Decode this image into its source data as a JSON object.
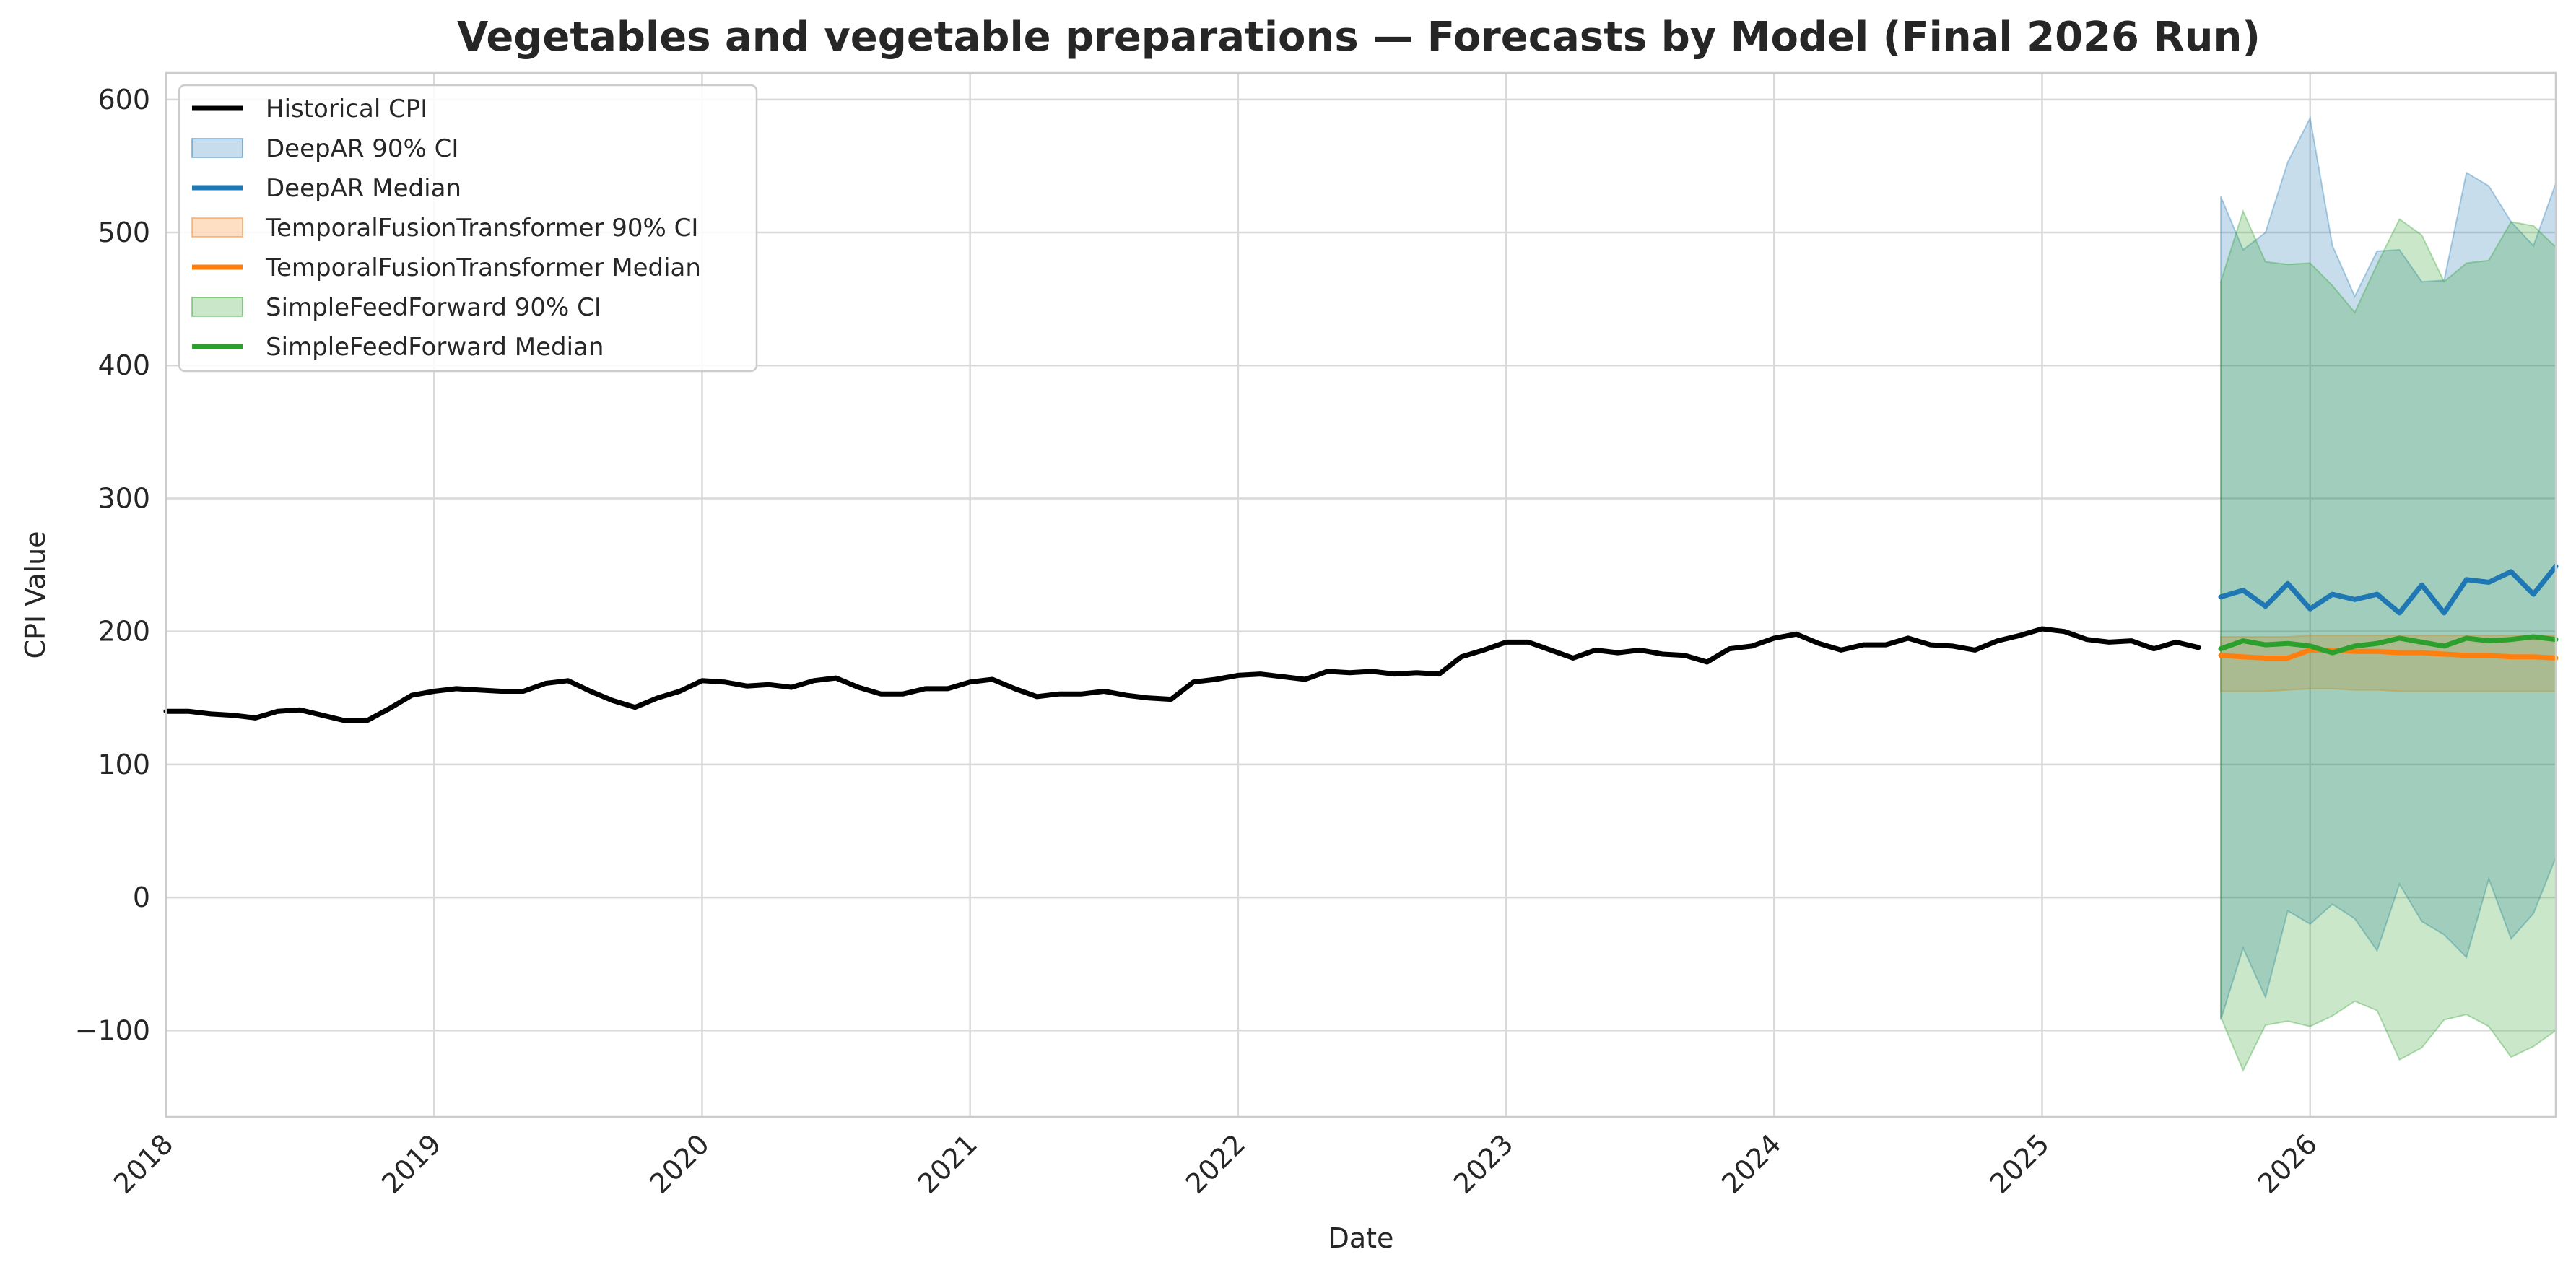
{
  "chart_data": {
    "type": "line",
    "title": "Vegetables and vegetable preparations — Forecasts by Model (Final 2026 Run)",
    "xlabel": "Date",
    "ylabel": "CPI Value",
    "xlim": [
      "2018-01",
      "2026-12"
    ],
    "ylim": [
      -165,
      620
    ],
    "x_ticks": [
      "2018",
      "2019",
      "2020",
      "2021",
      "2022",
      "2023",
      "2024",
      "2025",
      "2026"
    ],
    "y_ticks": [
      -100,
      0,
      100,
      200,
      300,
      400,
      500,
      600
    ],
    "grid": true,
    "legend_position": "top-left",
    "historical": {
      "name": "Historical CPI",
      "color": "#000000",
      "start": "2018-01",
      "values": [
        140,
        140,
        138,
        137,
        135,
        140,
        141,
        137,
        133,
        133,
        142,
        152,
        155,
        157,
        156,
        155,
        155,
        161,
        163,
        155,
        148,
        143,
        150,
        155,
        163,
        162,
        159,
        160,
        158,
        163,
        165,
        158,
        153,
        153,
        157,
        157,
        162,
        164,
        157,
        151,
        153,
        153,
        155,
        152,
        150,
        149,
        162,
        164,
        167,
        168,
        166,
        164,
        170,
        169,
        170,
        168,
        169,
        168,
        181,
        186,
        192,
        192,
        186,
        180,
        186,
        184,
        186,
        183,
        182,
        177,
        187,
        189,
        195,
        198,
        191,
        186,
        190,
        190,
        195,
        190,
        189,
        186,
        193,
        197,
        202,
        200,
        194,
        192,
        193,
        187,
        192,
        188
      ]
    },
    "forecast_start": "2025-09",
    "forecast_months": [
      "2025-09",
      "2025-10",
      "2025-11",
      "2025-12",
      "2026-01",
      "2026-02",
      "2026-03",
      "2026-04",
      "2026-05",
      "2026-06",
      "2026-07",
      "2026-08",
      "2026-09",
      "2026-10",
      "2026-11",
      "2026-12"
    ],
    "series": [
      {
        "name": "DeepAR",
        "ci_label": "DeepAR 90% CI",
        "median_label": "DeepAR Median",
        "color": "#1f77b4",
        "median": [
          226,
          231,
          219,
          236,
          217,
          228,
          224,
          228,
          214,
          235,
          214,
          239,
          237,
          245,
          228,
          249
        ],
        "upper": [
          527,
          487,
          500,
          553,
          586,
          490,
          452,
          486,
          487,
          463,
          464,
          545,
          535,
          508,
          490,
          537
        ],
        "lower": [
          -92,
          -38,
          -75,
          -10,
          -20,
          -5,
          -16,
          -40,
          10,
          -18,
          -28,
          -45,
          14,
          -31,
          -12,
          30
        ]
      },
      {
        "name": "TemporalFusionTransformer",
        "ci_label": "TemporalFusionTransformer 90% CI",
        "median_label": "TemporalFusionTransformer Median",
        "color": "#ff7f0e",
        "median": [
          182,
          181,
          180,
          180,
          186,
          186,
          185,
          185,
          184,
          184,
          183,
          182,
          182,
          181,
          181,
          180
        ],
        "upper": [
          196,
          196,
          196,
          196,
          197,
          197,
          197,
          197,
          197,
          197,
          197,
          197,
          197,
          197,
          197,
          197
        ],
        "lower": [
          155,
          155,
          155,
          156,
          157,
          157,
          156,
          156,
          155,
          155,
          155,
          155,
          155,
          155,
          155,
          155
        ]
      },
      {
        "name": "SimpleFeedForward",
        "ci_label": "SimpleFeedForward 90% CI",
        "median_label": "SimpleFeedForward Median",
        "color": "#2ca02c",
        "median": [
          187,
          193,
          190,
          191,
          189,
          184,
          189,
          191,
          195,
          192,
          189,
          195,
          193,
          194,
          196,
          194
        ],
        "upper": [
          463,
          516,
          478,
          476,
          477,
          460,
          440,
          476,
          510,
          498,
          463,
          477,
          479,
          508,
          505,
          489
        ],
        "lower": [
          -90,
          -130,
          -96,
          -93,
          -97,
          -89,
          -78,
          -85,
          -122,
          -113,
          -92,
          -88,
          -97,
          -120,
          -112,
          -100
        ]
      }
    ]
  }
}
